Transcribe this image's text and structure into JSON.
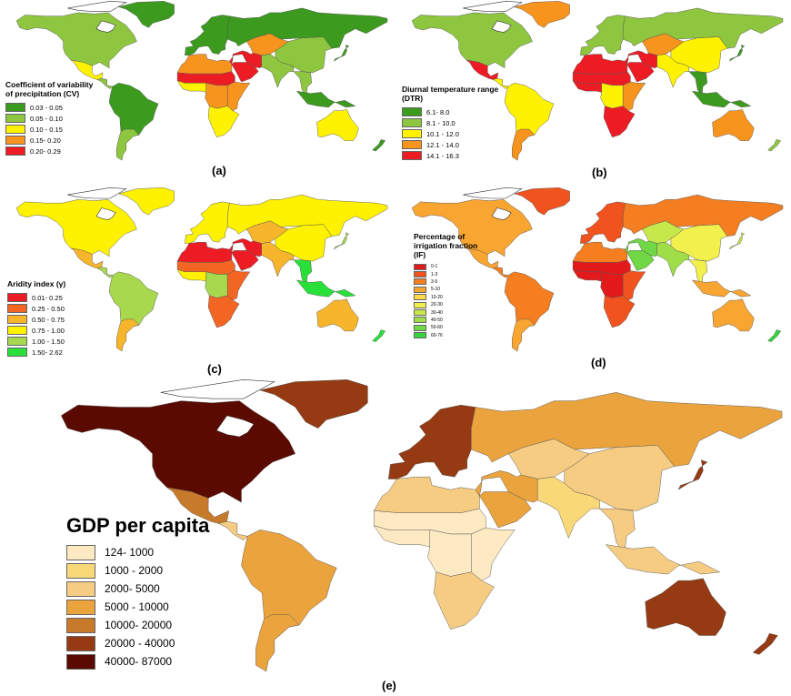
{
  "panels": {
    "a": {
      "label": "(a)",
      "legend_title_lines": [
        "Coefficient of variability",
        "of precipitation (CV)"
      ],
      "classes": [
        {
          "label": "0.03 - 0.05",
          "color": "#3c9a1f"
        },
        {
          "label": "0.05 - 0.10",
          "color": "#8ec63f"
        },
        {
          "label": "0.10 - 0.15",
          "color": "#fff200"
        },
        {
          "label": "0.15- 0.20",
          "color": "#f7941d"
        },
        {
          "label": "0.20- 0.29",
          "color": "#ed1c24"
        }
      ]
    },
    "b": {
      "label": "(b)",
      "legend_title_lines": [
        "Diurnal temperature range",
        "(DTR)"
      ],
      "classes": [
        {
          "label": "6.1- 8.0",
          "color": "#3c9a1f"
        },
        {
          "label": "8.1 - 10.0",
          "color": "#8ec63f"
        },
        {
          "label": "10.1 - 12.0",
          "color": "#fff200"
        },
        {
          "label": "12.1 - 14.0",
          "color": "#f7941d"
        },
        {
          "label": "14.1 - 16.3",
          "color": "#ed1c24"
        }
      ]
    },
    "c": {
      "label": "(c)",
      "legend_title_lines": [
        "Aridity index (γ)"
      ],
      "classes": [
        {
          "label": "0.01- 0.25",
          "color": "#ed1c24"
        },
        {
          "label": "0.25 - 0.50",
          "color": "#f26522"
        },
        {
          "label": "0.50 - 0.75",
          "color": "#f7b52c"
        },
        {
          "label": "0.75 - 1.00",
          "color": "#fff200"
        },
        {
          "label": "1.00 - 1.50",
          "color": "#a8d84e"
        },
        {
          "label": "1.50- 2.62",
          "color": "#29e03a"
        }
      ]
    },
    "d": {
      "label": "(d)",
      "legend_title_lines": [
        "Percentage of",
        "irrigation fraction",
        "(IF)"
      ],
      "classes": [
        {
          "label": "0-1",
          "color": "#e31a1c"
        },
        {
          "label": "1-3",
          "color": "#f0531e"
        },
        {
          "label": "3-5",
          "color": "#f47e20"
        },
        {
          "label": "5-10",
          "color": "#f8a531"
        },
        {
          "label": "10-20",
          "color": "#fdd84a"
        },
        {
          "label": "20-30",
          "color": "#f2f04c"
        },
        {
          "label": "30-40",
          "color": "#c6e84a"
        },
        {
          "label": "40-50",
          "color": "#a0de48"
        },
        {
          "label": "50-60",
          "color": "#70d844"
        },
        {
          "label": "60-76",
          "color": "#33d43d"
        }
      ]
    },
    "e": {
      "label": "(e)",
      "legend_title": "GDP per capita",
      "classes": [
        {
          "label": "124- 1000",
          "color": "#fde9c2"
        },
        {
          "label": "1000 - 2000",
          "color": "#f9d877"
        },
        {
          "label": "2000- 5000",
          "color": "#f6cc83"
        },
        {
          "label": "5000 - 10000",
          "color": "#eba43d"
        },
        {
          "label": "10000- 20000",
          "color": "#c87a2b"
        },
        {
          "label": "20000 - 40000",
          "color": "#953a12"
        },
        {
          "label": "40000- 87000",
          "color": "#5b0a00"
        }
      ]
    }
  },
  "region_classes": {
    "a": {
      "north_america": 1,
      "greenland": 0,
      "mexico": 2,
      "central_america": 1,
      "south_america": 0,
      "southern_cone": 1,
      "europe": 0,
      "russia": 0,
      "north_africa": 3,
      "sahel": 4,
      "west_africa": 2,
      "central_africa": 3,
      "east_africa": 3,
      "southern_africa": 2,
      "middle_east": 4,
      "central_asia": 3,
      "south_asia": 1,
      "china": 1,
      "se_asia": 1,
      "indonesia": 0,
      "australia": 2,
      "new_zealand": 0,
      "japan": 0
    },
    "b": {
      "north_america": 1,
      "greenland": 3,
      "mexico": 4,
      "central_america": 2,
      "south_america": 2,
      "southern_cone": 3,
      "europe": 1,
      "russia": 1,
      "north_africa": 4,
      "sahel": 4,
      "west_africa": 4,
      "central_africa": 2,
      "east_africa": 3,
      "southern_africa": 4,
      "middle_east": 4,
      "central_asia": 3,
      "south_asia": 2,
      "china": 2,
      "se_asia": 0,
      "indonesia": 0,
      "australia": 3,
      "new_zealand": 1,
      "japan": 0
    },
    "c": {
      "north_america": 3,
      "greenland": 3,
      "mexico": 2,
      "central_america": 4,
      "south_america": 4,
      "southern_cone": 2,
      "europe": 3,
      "russia": 3,
      "north_africa": 0,
      "sahel": 1,
      "west_africa": 3,
      "central_africa": 4,
      "east_africa": 1,
      "southern_africa": 1,
      "middle_east": 0,
      "central_asia": 2,
      "south_asia": 2,
      "china": 3,
      "se_asia": 5,
      "indonesia": 5,
      "australia": 2,
      "new_zealand": 5,
      "japan": 4
    },
    "d": {
      "north_america": 3,
      "greenland": 1,
      "mexico": 3,
      "central_america": 2,
      "south_america": 2,
      "southern_cone": 3,
      "europe": 1,
      "russia": 2,
      "north_africa": 2,
      "sahel": 0,
      "west_africa": 0,
      "central_africa": 0,
      "east_africa": 1,
      "southern_africa": 1,
      "middle_east": 8,
      "central_asia": 6,
      "south_asia": 7,
      "china": 5,
      "se_asia": 5,
      "indonesia": 3,
      "australia": 3,
      "new_zealand": 9,
      "japan": 6
    },
    "e": {
      "north_america": 6,
      "greenland": 5,
      "mexico": 4,
      "central_america": 2,
      "south_america": 3,
      "southern_cone": 3,
      "europe": 5,
      "russia": 3,
      "north_africa": 2,
      "sahel": 0,
      "west_africa": 0,
      "central_africa": 0,
      "east_africa": 0,
      "southern_africa": 2,
      "middle_east": 3,
      "central_asia": 2,
      "south_asia": 1,
      "china": 2,
      "se_asia": 2,
      "indonesia": 2,
      "australia": 5,
      "new_zealand": 5,
      "japan": 5
    }
  }
}
